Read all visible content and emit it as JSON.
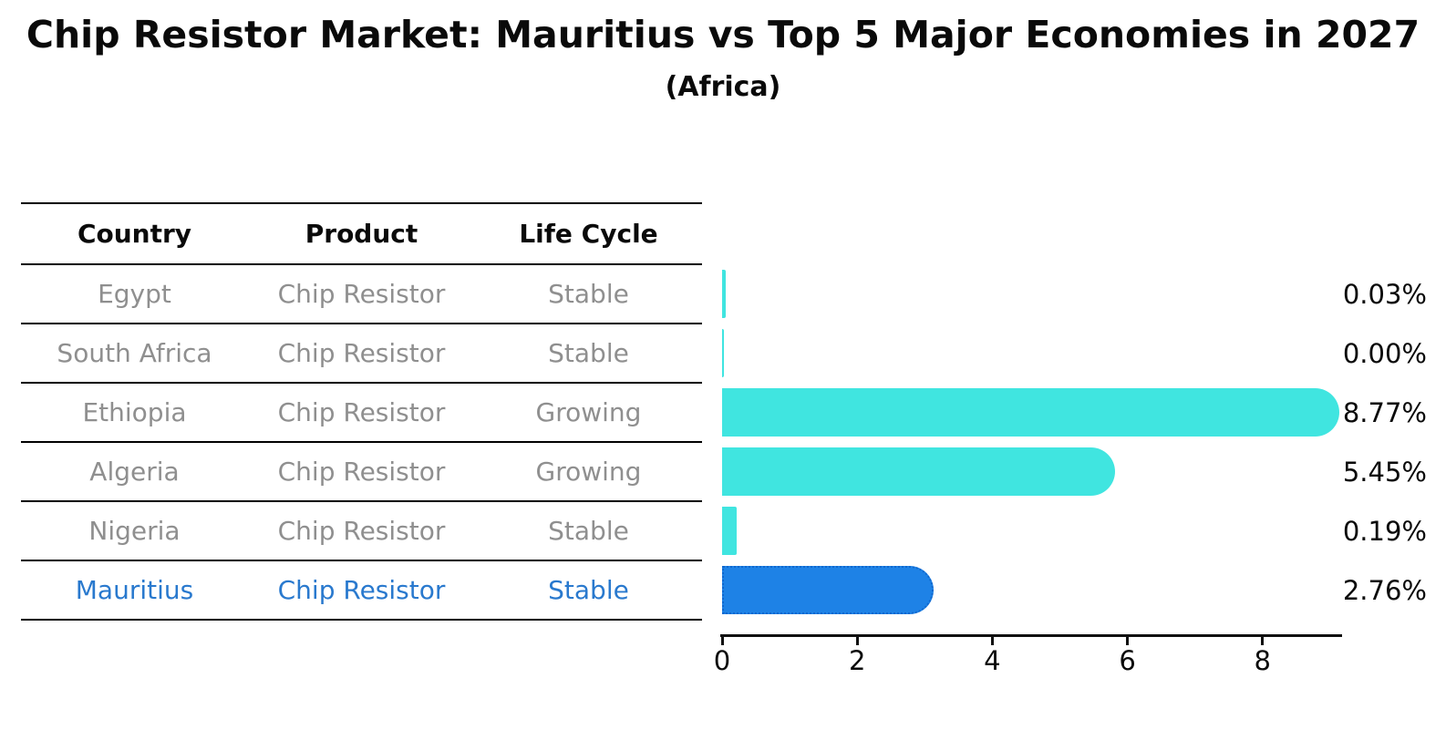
{
  "title": "Chip Resistor Market: Mauritius vs Top 5 Major Economies in 2027",
  "subtitle": "(Africa)",
  "table": {
    "headers": [
      "Country",
      "Product",
      "Life Cycle"
    ],
    "rows": [
      {
        "country": "Egypt",
        "product": "Chip Resistor",
        "life_cycle": "Stable",
        "highlighted": false
      },
      {
        "country": "South Africa",
        "product": "Chip Resistor",
        "life_cycle": "Stable",
        "highlighted": false
      },
      {
        "country": "Ethiopia",
        "product": "Chip Resistor",
        "life_cycle": "Growing",
        "highlighted": false
      },
      {
        "country": "Algeria",
        "product": "Chip Resistor",
        "life_cycle": "Growing",
        "highlighted": false
      },
      {
        "country": "Nigeria",
        "product": "Chip Resistor",
        "life_cycle": "Stable",
        "highlighted": false
      },
      {
        "country": "Mauritius",
        "product": "Chip Resistor",
        "life_cycle": "Stable",
        "highlighted": true
      }
    ]
  },
  "chart_data": {
    "type": "bar",
    "orientation": "horizontal",
    "categories": [
      "Egypt",
      "South Africa",
      "Ethiopia",
      "Algeria",
      "Nigeria",
      "Mauritius"
    ],
    "values": [
      0.03,
      0.0,
      8.77,
      5.45,
      0.19,
      2.76
    ],
    "labels": [
      "0.03%",
      "0.00%",
      "8.77%",
      "5.45%",
      "0.19%",
      "2.76%"
    ],
    "xticks": [
      0,
      2,
      4,
      6,
      8
    ],
    "xlim": [
      0,
      9.15
    ],
    "highlight_index": 5,
    "legend_position": "none",
    "grid": false,
    "colors": {
      "default": "#40e5e0",
      "highlight": "#1e82e6",
      "highlight_border": "#0f67ce"
    }
  }
}
